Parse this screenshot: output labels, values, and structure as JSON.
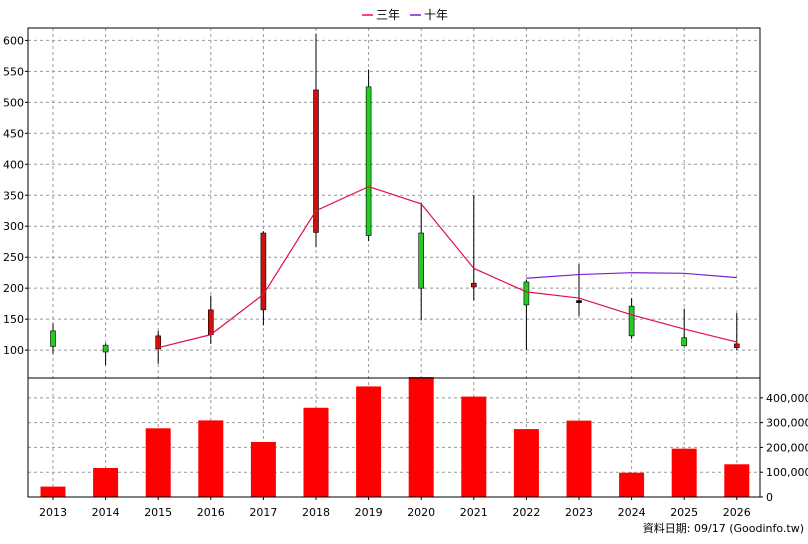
{
  "chart_data": {
    "type": "candlestick",
    "legend": [
      {
        "label": "三年",
        "color": "#e0104c"
      },
      {
        "label": "十年",
        "color": "#7a1fd6"
      }
    ],
    "categories": [
      "2013",
      "2014",
      "2015",
      "2016",
      "2017",
      "2018",
      "2019",
      "2020",
      "2021",
      "2022",
      "2023",
      "2024",
      "2025",
      "2026"
    ],
    "price_axis": {
      "ticks": [
        100,
        150,
        200,
        250,
        300,
        350,
        400,
        450,
        500,
        550,
        600
      ],
      "tick_labels": [
        "100",
        "150",
        "200",
        "250",
        "300",
        "350",
        "400",
        "450",
        "500",
        "550",
        "600"
      ],
      "ylim": [
        55,
        620
      ]
    },
    "candles": [
      {
        "open": 106,
        "close": 131,
        "high": 143,
        "low": 94
      },
      {
        "open": 97,
        "close": 108,
        "high": 111,
        "low": 76
      },
      {
        "open": 123,
        "close": 102,
        "high": 131,
        "low": 78
      },
      {
        "open": 165,
        "close": 125,
        "high": 188,
        "low": 110
      },
      {
        "open": 289,
        "close": 165,
        "high": 292,
        "low": 140
      },
      {
        "open": 520,
        "close": 290,
        "high": 611,
        "low": 266
      },
      {
        "open": 285,
        "close": 525,
        "high": 553,
        "low": 276
      },
      {
        "open": 200,
        "close": 289,
        "high": 337,
        "low": 148
      },
      {
        "open": 208,
        "close": 202,
        "high": 350,
        "low": 180
      },
      {
        "open": 173,
        "close": 210,
        "high": 214,
        "low": 100
      },
      {
        "open": 180,
        "close": 180,
        "high": 239,
        "low": 155
      },
      {
        "open": 123,
        "close": 171,
        "high": 184,
        "low": 118
      },
      {
        "open": 107,
        "close": 120,
        "high": 167,
        "low": 106
      },
      {
        "open": 110,
        "close": 104,
        "high": 160,
        "low": 100
      }
    ],
    "series": [
      {
        "name": "三年",
        "values": [
          null,
          null,
          104,
          125,
          190,
          325,
          364,
          336,
          232,
          194,
          184,
          157,
          134,
          113
        ]
      },
      {
        "name": "十年",
        "values": [
          null,
          null,
          null,
          null,
          null,
          null,
          null,
          null,
          null,
          216,
          222,
          225,
          224,
          217
        ]
      }
    ],
    "volume": {
      "values": [
        42000,
        117000,
        277000,
        309000,
        222000,
        360000,
        446000,
        484000,
        405000,
        274000,
        308000,
        98000,
        195000,
        132000
      ],
      "ticks": [
        0,
        100000,
        200000,
        300000,
        400000
      ],
      "tick_labels": [
        "0",
        "100,000",
        "200,000",
        "300,000",
        "400,000"
      ],
      "ylim": [
        0,
        480000
      ]
    },
    "grid": true,
    "footer": "資料日期: 09/17  (Goodinfo.tw)"
  }
}
